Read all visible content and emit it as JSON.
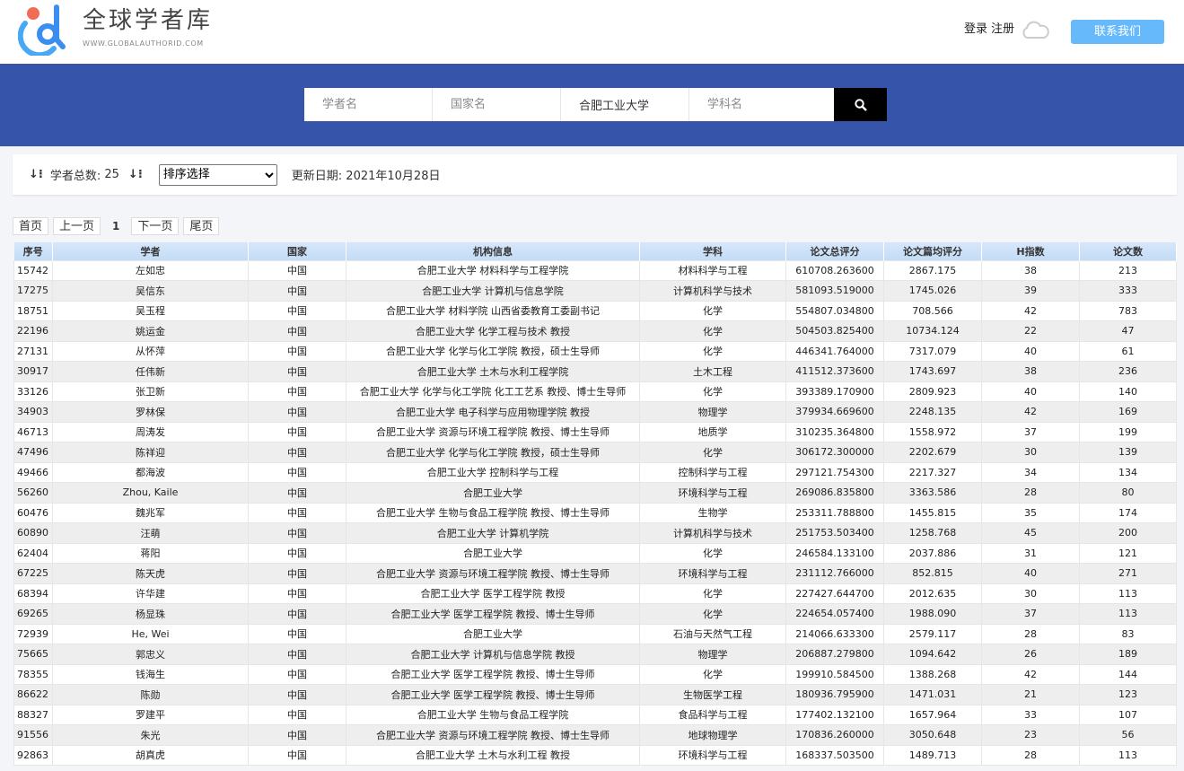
{
  "header": {
    "brand": "全球学者库",
    "brand_sub": "WWW.GLOBALAUTHORID.COM",
    "login": "登录",
    "register": "注册",
    "contact": "联系我们"
  },
  "search": {
    "scholar_placeholder": "学者名",
    "country_placeholder": "国家名",
    "institution_value": "合肥工业大学",
    "subject_placeholder": "学科名",
    "icon": "search-icon"
  },
  "toolbar": {
    "total_label": "学者总数:",
    "total": "25",
    "sort_selected": "排序选择",
    "update_label": "更新日期:",
    "update_date": "2021年10月28日"
  },
  "pager": {
    "first": "首页",
    "prev": "上一页",
    "current": "1",
    "next": "下一页",
    "last": "尾页"
  },
  "colors": {
    "band": "#3655aa",
    "contact": "#66b9fb",
    "header": "#cfe3f9"
  },
  "table": {
    "columns": [
      "序号",
      "学者",
      "国家",
      "机构信息",
      "学科",
      "论文总评分",
      "论文篇均评分",
      "H指数",
      "论文数"
    ],
    "rows": [
      [
        "15742",
        "左如忠",
        "中国",
        "合肥工业大学 材料科学与工程学院",
        "材料科学与工程",
        "610708.263600",
        "2867.175",
        "38",
        "213"
      ],
      [
        "17275",
        "吴信东",
        "中国",
        "合肥工业大学 计算机与信息学院",
        "计算机科学与技术",
        "581093.519000",
        "1745.026",
        "39",
        "333"
      ],
      [
        "18751",
        "吴玉程",
        "中国",
        "合肥工业大学 材料学院 山西省委教育工委副书记",
        "化学",
        "554807.034800",
        "708.566",
        "42",
        "783"
      ],
      [
        "22196",
        "姚运金",
        "中国",
        "合肥工业大学 化学工程与技术 教授",
        "化学",
        "504503.825400",
        "10734.124",
        "22",
        "47"
      ],
      [
        "27131",
        "从怀萍",
        "中国",
        "合肥工业大学 化学与化工学院 教授，硕士生导师",
        "化学",
        "446341.764000",
        "7317.079",
        "40",
        "61"
      ],
      [
        "30917",
        "任伟新",
        "中国",
        "合肥工业大学 土木与水利工程学院",
        "土木工程",
        "411512.373600",
        "1743.697",
        "38",
        "236"
      ],
      [
        "33126",
        "张卫新",
        "中国",
        "合肥工业大学 化学与化工学院 化工工艺系 教授、博士生导师",
        "化学",
        "393389.170900",
        "2809.923",
        "40",
        "140"
      ],
      [
        "34903",
        "罗林保",
        "中国",
        "合肥工业大学 电子科学与应用物理学院 教授",
        "物理学",
        "379934.669600",
        "2248.135",
        "42",
        "169"
      ],
      [
        "46713",
        "周涛发",
        "中国",
        "合肥工业大学 资源与环境工程学院 教授、博士生导师",
        "地质学",
        "310235.364800",
        "1558.972",
        "37",
        "199"
      ],
      [
        "47496",
        "陈祥迎",
        "中国",
        "合肥工业大学 化学与化工学院 教授，硕士生导师",
        "化学",
        "306172.300000",
        "2202.679",
        "30",
        "139"
      ],
      [
        "49466",
        "都海波",
        "中国",
        "合肥工业大学 控制科学与工程",
        "控制科学与工程",
        "297121.754300",
        "2217.327",
        "34",
        "134"
      ],
      [
        "56260",
        "Zhou, Kaile",
        "中国",
        "合肥工业大学",
        "环境科学与工程",
        "269086.835800",
        "3363.586",
        "28",
        "80"
      ],
      [
        "60476",
        "魏兆军",
        "中国",
        "合肥工业大学 生物与食品工程学院 教授、博士生导师",
        "生物学",
        "253311.788800",
        "1455.815",
        "35",
        "174"
      ],
      [
        "60890",
        "汪萌",
        "中国",
        "合肥工业大学 计算机学院",
        "计算机科学与技术",
        "251753.503400",
        "1258.768",
        "45",
        "200"
      ],
      [
        "62404",
        "蒋阳",
        "中国",
        "合肥工业大学",
        "化学",
        "246584.133100",
        "2037.886",
        "31",
        "121"
      ],
      [
        "67225",
        "陈天虎",
        "中国",
        "合肥工业大学 资源与环境工程学院 教授、博士生导师",
        "环境科学与工程",
        "231112.766000",
        "852.815",
        "40",
        "271"
      ],
      [
        "68394",
        "许华建",
        "中国",
        "合肥工业大学 医学工程学院 教授",
        "化学",
        "227427.644700",
        "2012.635",
        "30",
        "113"
      ],
      [
        "69265",
        "杨显珠",
        "中国",
        "合肥工业大学 医学工程学院 教授、博士生导师",
        "化学",
        "224654.057400",
        "1988.090",
        "37",
        "113"
      ],
      [
        "72939",
        "He, Wei",
        "中国",
        "合肥工业大学",
        "石油与天然气工程",
        "214066.633300",
        "2579.117",
        "28",
        "83"
      ],
      [
        "75665",
        "郭忠义",
        "中国",
        "合肥工业大学 计算机与信息学院 教授",
        "物理学",
        "206887.279800",
        "1094.642",
        "26",
        "189"
      ],
      [
        "78355",
        "钱海生",
        "中国",
        "合肥工业大学 医学工程学院 教授、博士生导师",
        "化学",
        "199910.584500",
        "1388.268",
        "42",
        "144"
      ],
      [
        "86622",
        "陈勋",
        "中国",
        "合肥工业大学 医学工程学院 教授、博士生导师",
        "生物医学工程",
        "180936.795900",
        "1471.031",
        "21",
        "123"
      ],
      [
        "88327",
        "罗建平",
        "中国",
        "合肥工业大学 生物与食品工程学院",
        "食品科学与工程",
        "177402.132100",
        "1657.964",
        "33",
        "107"
      ],
      [
        "91556",
        "朱光",
        "中国",
        "合肥工业大学 资源与环境工程学院 教授、博士生导师",
        "地球物理学",
        "170836.260000",
        "3050.648",
        "23",
        "56"
      ],
      [
        "92863",
        "胡真虎",
        "中国",
        "合肥工业大学 土木与水利工程 教授",
        "环境科学与工程",
        "168337.503500",
        "1489.713",
        "28",
        "113"
      ]
    ]
  }
}
